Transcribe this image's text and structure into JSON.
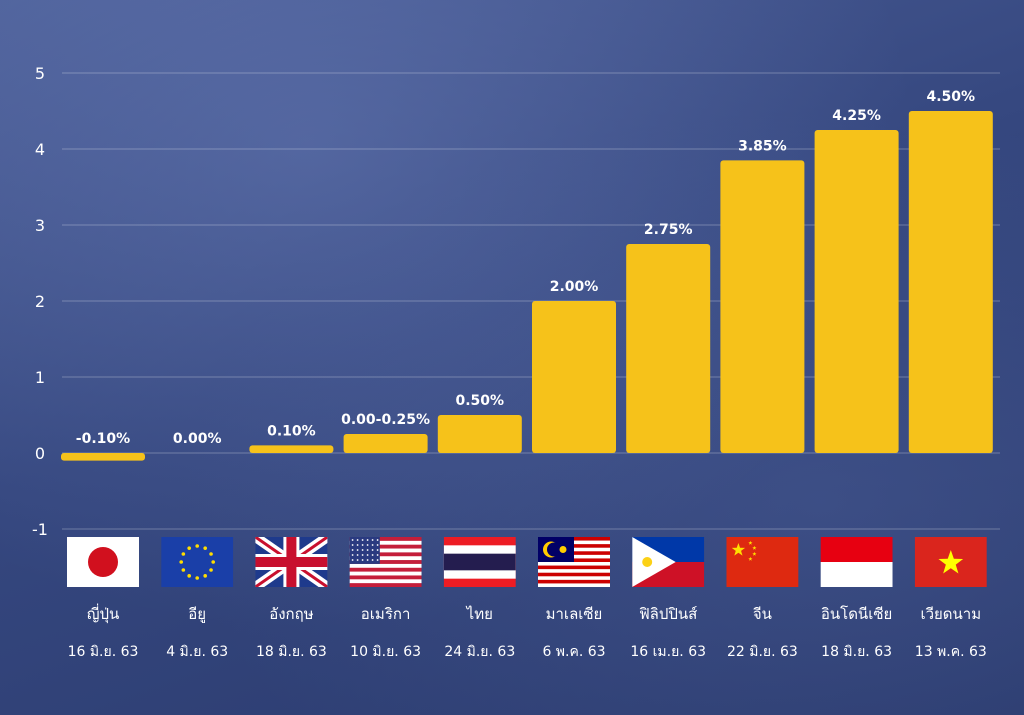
{
  "chart_data": {
    "type": "bar",
    "categories": [
      "ญี่ปุ่น",
      "อียู",
      "อังกฤษ",
      "อเมริกา",
      "ไทย",
      "มาเลเซีย",
      "ฟิลิปปินส์",
      "จีน",
      "อินโดนีเซีย",
      "เวียดนาม"
    ],
    "dates": [
      "16 มิ.ย. 63",
      "4 มิ.ย. 63",
      "18 มิ.ย. 63",
      "10 มิ.ย. 63",
      "24 มิ.ย. 63",
      "6 พ.ค. 63",
      "16 เม.ย. 63",
      "22 มิ.ย. 63",
      "18 มิ.ย. 63",
      "13 พ.ค. 63"
    ],
    "values": [
      -0.1,
      0.0,
      0.1,
      0.25,
      0.5,
      2.0,
      2.75,
      3.85,
      4.25,
      4.5
    ],
    "data_labels": [
      "-0.10%",
      "0.00%",
      "0.10%",
      "0.00-0.25%",
      "0.50%",
      "2.00%",
      "2.75%",
      "3.85%",
      "4.25%",
      "4.50%"
    ],
    "flags": [
      "japan-flag",
      "eu-flag",
      "uk-flag",
      "usa-flag",
      "thailand-flag",
      "malaysia-flag",
      "philippines-flag",
      "china-flag",
      "indonesia-flag",
      "vietnam-flag"
    ],
    "yticks": [
      "-1",
      "0",
      "1",
      "2",
      "3",
      "4",
      "5"
    ],
    "ylim": [
      -1,
      5
    ],
    "grid": true,
    "bar_color": "#f6c21a",
    "title": "",
    "xlabel": "",
    "ylabel": ""
  }
}
